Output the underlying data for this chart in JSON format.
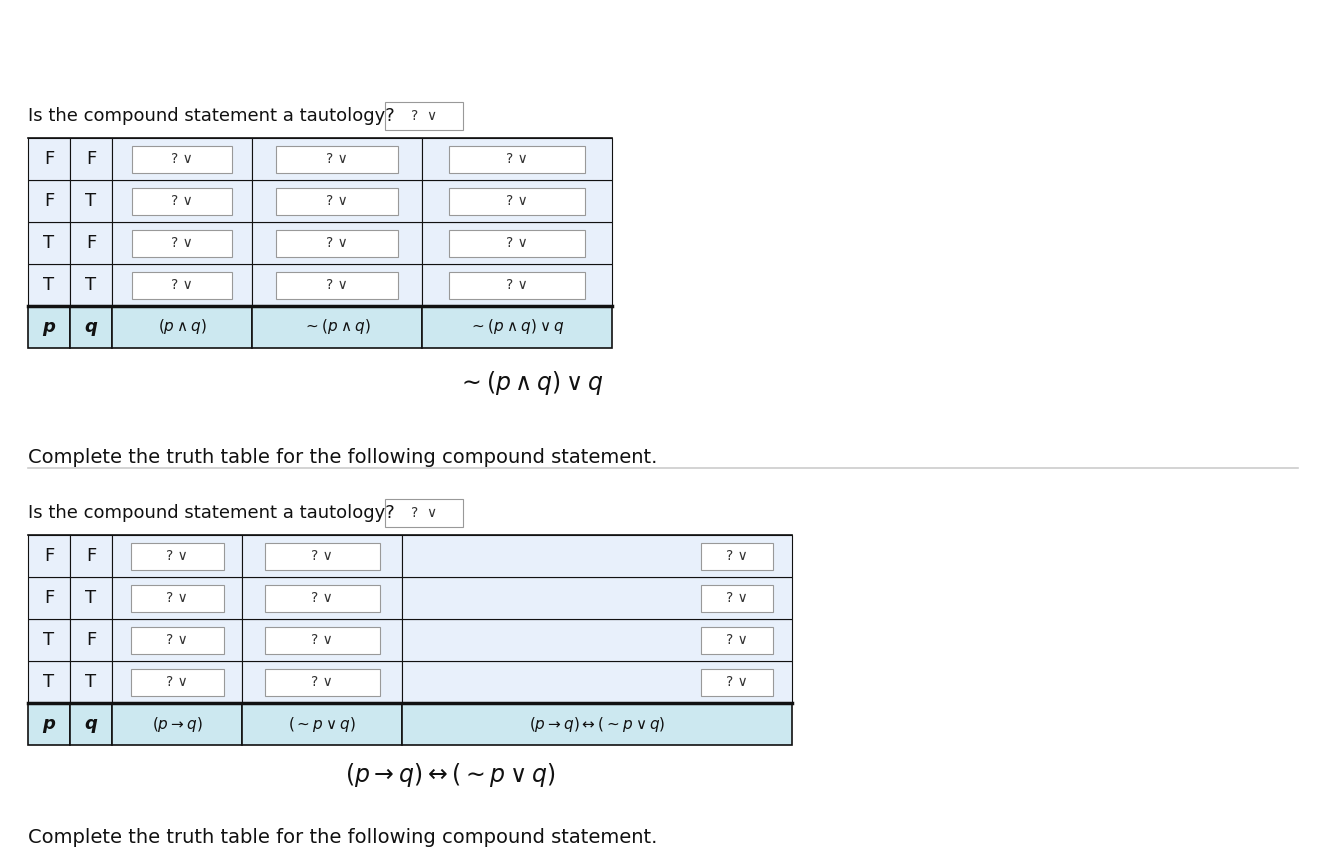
{
  "title": "Complete the truth table for the following compound statement.",
  "formula1_text": "$(p \\rightarrow q) \\leftrightarrow ( \\sim p \\vee q)$",
  "formula2_text": "$\\sim (p \\wedge q) \\vee q$",
  "bg_color": "#ffffff",
  "header_fill": "#cce8f0",
  "data_fill": "#e8f0fb",
  "border_dark": "#111111",
  "border_light": "#aaaaaa",
  "text_color": "#111111",
  "pq_color": "#111111",
  "rows": [
    [
      "T",
      "T"
    ],
    [
      "T",
      "F"
    ],
    [
      "F",
      "T"
    ],
    [
      "F",
      "F"
    ]
  ]
}
